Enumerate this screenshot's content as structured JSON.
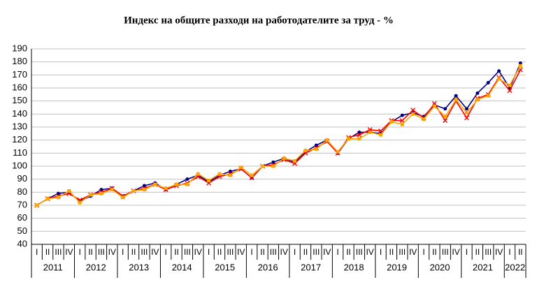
{
  "chart_data": {
    "type": "line",
    "title": "Индекс на общите разходи на работодателите за труд - %",
    "categories": [
      "I",
      "II",
      "III",
      "IV",
      "I",
      "II",
      "III",
      "IV",
      "I",
      "II",
      "III",
      "IV",
      "I",
      "II",
      "III",
      "IV",
      "I",
      "II",
      "III",
      "IV",
      "I",
      "II",
      "III",
      "IV",
      "I",
      "II",
      "III",
      "IV",
      "I",
      "II",
      "III",
      "IV",
      "I",
      "II",
      "III",
      "IV",
      "I",
      "II",
      "III",
      "IV",
      "I",
      "II",
      "III",
      "IV",
      "I",
      "II"
    ],
    "years": [
      "2011",
      "2012",
      "2013",
      "2014",
      "2015",
      "2016",
      "2017",
      "2018",
      "2019",
      "2020",
      "2021",
      "2022"
    ],
    "series": [
      {
        "color": "#000080",
        "marker": "circle",
        "values": [
          70,
          75,
          79,
          80,
          73,
          77,
          82,
          83,
          77,
          81,
          85,
          87,
          82,
          86,
          90,
          93,
          88,
          93,
          96,
          98,
          91,
          100,
          103,
          106,
          103,
          111,
          116,
          120,
          110,
          121,
          126,
          126,
          125,
          134,
          139,
          141,
          138,
          147,
          144,
          154,
          144,
          156,
          164,
          173,
          160,
          179
        ]
      },
      {
        "color": "#ff0000",
        "marker": "cross",
        "values": [
          70,
          75,
          77,
          79,
          74,
          78,
          80,
          83,
          77,
          81,
          83,
          86,
          82,
          85,
          87,
          92,
          87,
          92,
          94,
          98,
          91,
          100,
          101,
          105,
          102,
          110,
          114,
          119,
          110,
          122,
          124,
          128,
          127,
          135,
          135,
          143,
          137,
          148,
          135,
          150,
          137,
          152,
          155,
          168,
          158,
          174
        ]
      },
      {
        "color": "#ffa500",
        "marker": "square",
        "values": [
          70,
          75,
          76,
          81,
          72,
          78,
          79,
          82,
          76,
          81,
          82,
          86,
          83,
          86,
          86,
          94,
          89,
          94,
          93,
          99,
          93,
          100,
          100,
          106,
          104,
          112,
          113,
          120,
          111,
          121,
          121,
          126,
          124,
          134,
          132,
          140,
          136,
          146,
          138,
          151,
          141,
          151,
          154,
          167,
          162,
          177
        ]
      }
    ],
    "ylim": [
      40,
      190
    ],
    "yticks": [
      40,
      50,
      60,
      70,
      80,
      90,
      100,
      110,
      120,
      130,
      140,
      150,
      160,
      170,
      180,
      190
    ],
    "grid": true
  }
}
